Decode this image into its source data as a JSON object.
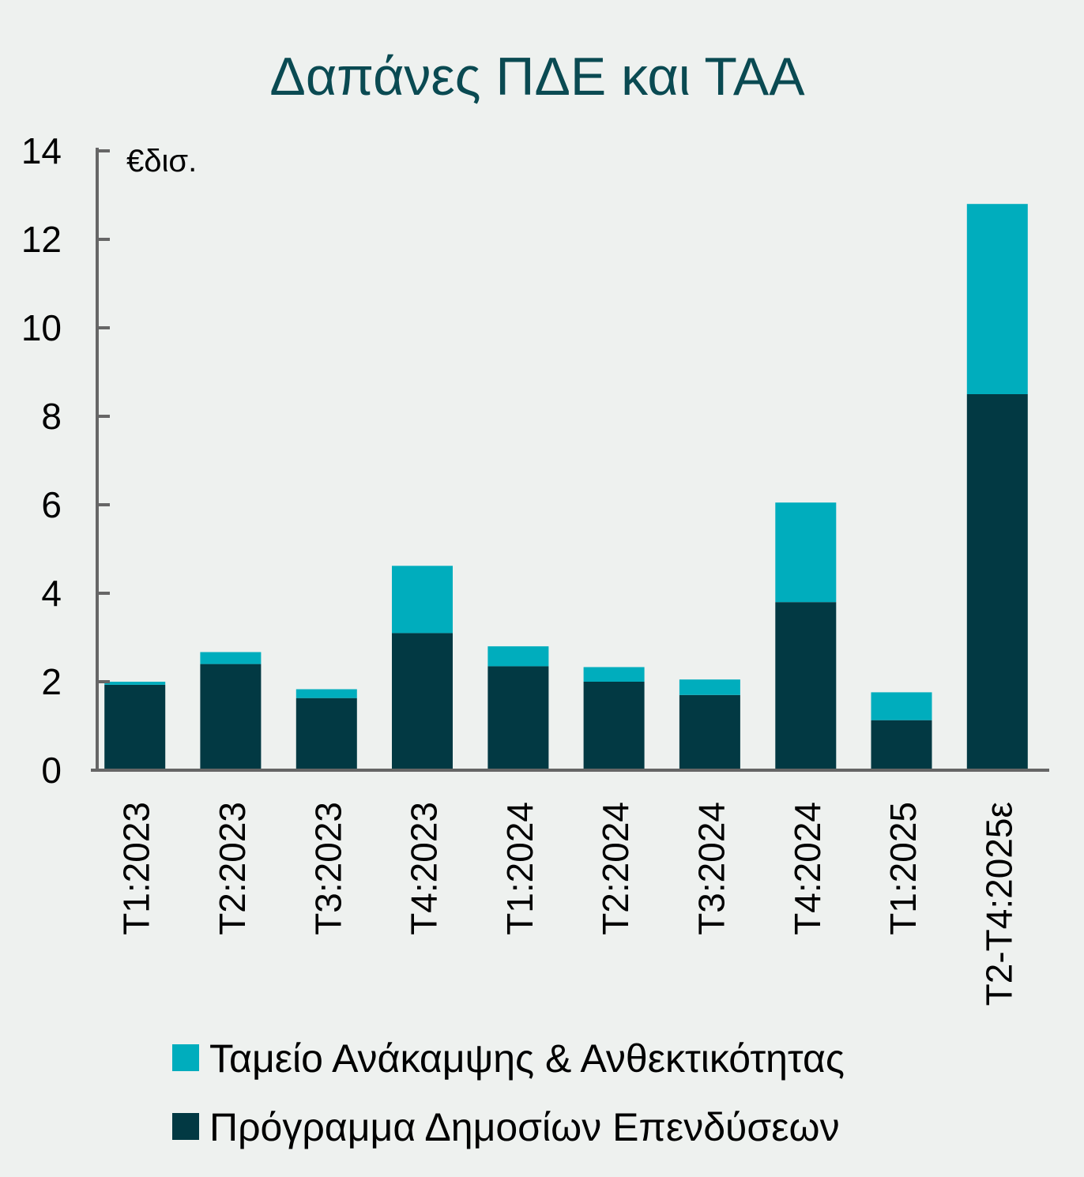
{
  "chart_data": {
    "type": "bar",
    "stacked": true,
    "title": "Δαπάνες ΠΔΕ και ΤΑΑ",
    "unit_label": "€δισ.",
    "xlabel": "",
    "ylabel": "",
    "ylim": [
      0,
      14
    ],
    "yticks": [
      "0",
      "2",
      "4",
      "6",
      "8",
      "10",
      "12",
      "14"
    ],
    "grid": false,
    "legend_position": "bottom",
    "categories": [
      "T1:2023",
      "T2:2023",
      "T3:2023",
      "T4:2023",
      "T1:2024",
      "T2:2024",
      "T3:2024",
      "T4:2024",
      "T1:2025",
      "T2-T4:2025ε"
    ],
    "series": [
      {
        "name": "Πρόγραμμα Δημοσίων Επενδύσεων",
        "color": "#023943",
        "values": [
          1.93,
          2.4,
          1.63,
          3.1,
          2.35,
          2.0,
          1.7,
          3.8,
          1.13,
          8.5
        ]
      },
      {
        "name": "Ταμείο Ανάκαμψης & Ανθεκτικότητας",
        "color": "#00adbd",
        "values": [
          0.07,
          0.27,
          0.2,
          1.52,
          0.45,
          0.33,
          0.35,
          2.25,
          0.63,
          4.3
        ]
      }
    ],
    "legend_order": [
      1,
      0
    ]
  }
}
